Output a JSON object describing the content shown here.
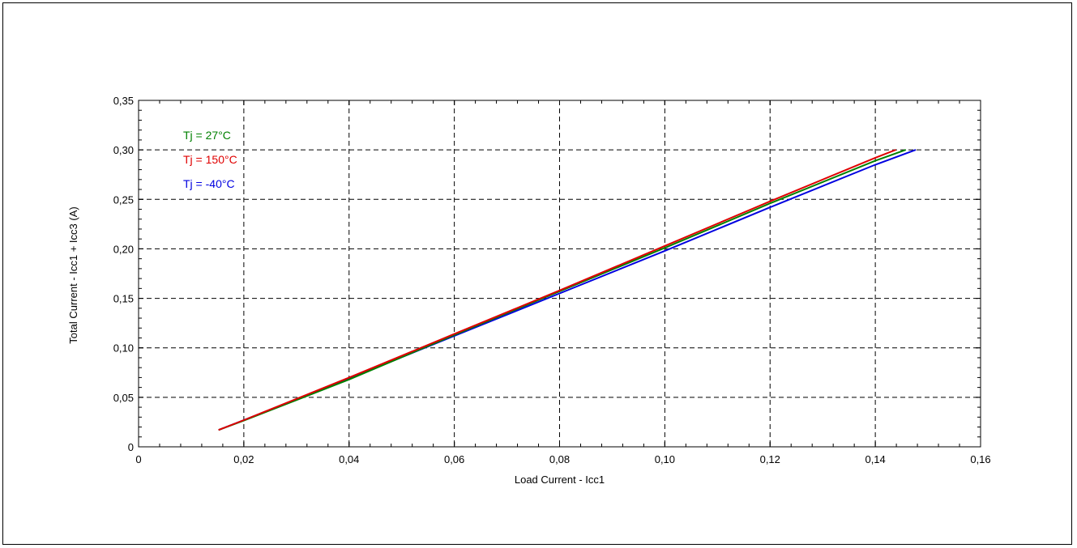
{
  "chart_data": {
    "type": "line",
    "title": "",
    "xlabel": "Load Current - Icc1",
    "ylabel": "Total Current - Icc1 + Icc3   (A)",
    "xlim": [
      0,
      0.16
    ],
    "ylim": [
      0,
      0.35
    ],
    "x_ticks": [
      0,
      0.02,
      0.04,
      0.06,
      0.08,
      0.1,
      0.12,
      0.14,
      0.16
    ],
    "x_tick_labels": [
      "0",
      "0,02",
      "0,04",
      "0,06",
      "0,08",
      "0,10",
      "0,12",
      "0,14",
      "0,16"
    ],
    "y_ticks": [
      0,
      0.05,
      0.1,
      0.15,
      0.2,
      0.25,
      0.3,
      0.35
    ],
    "y_tick_labels": [
      "0",
      "0,05",
      "0,10",
      "0,15",
      "0,20",
      "0,25",
      "0,30",
      "0,35"
    ],
    "grid": true,
    "legend_placement": "top-left",
    "series": [
      {
        "name": "Tj = 27°C",
        "color": "#008000",
        "x": [
          0.0152,
          0.02,
          0.04,
          0.06,
          0.08,
          0.1,
          0.12,
          0.14,
          0.1458
        ],
        "y": [
          0.017,
          0.0265,
          0.068,
          0.113,
          0.157,
          0.201,
          0.246,
          0.289,
          0.3
        ]
      },
      {
        "name": "Tj = 150°C",
        "color": "#e00000",
        "x": [
          0.0152,
          0.02,
          0.04,
          0.06,
          0.08,
          0.1,
          0.12,
          0.14,
          0.1439
        ],
        "y": [
          0.017,
          0.027,
          0.07,
          0.114,
          0.158,
          0.203,
          0.248,
          0.292,
          0.3
        ]
      },
      {
        "name": "Tj = -40°C",
        "color": "#0000e0",
        "x": [
          0.0152,
          0.02,
          0.04,
          0.06,
          0.08,
          0.1,
          0.12,
          0.14,
          0.1477
        ],
        "y": [
          0.017,
          0.027,
          0.069,
          0.112,
          0.155,
          0.198,
          0.242,
          0.285,
          0.3
        ]
      }
    ]
  }
}
